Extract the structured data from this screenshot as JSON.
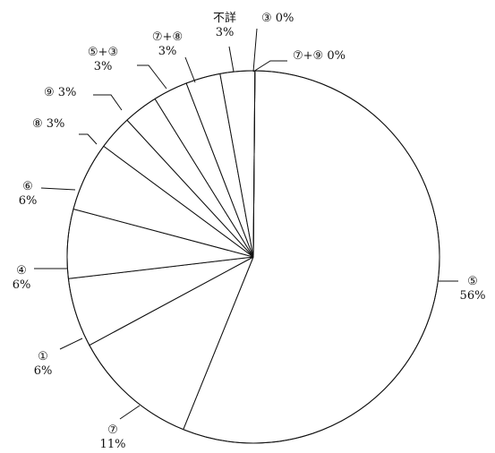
{
  "chart_data": {
    "type": "pie",
    "title": "",
    "slices": [
      {
        "name": "⑤",
        "value": 56,
        "label_lines": [
          "⑤",
          "56%"
        ]
      },
      {
        "name": "⑦",
        "value": 11,
        "label_lines": [
          "⑦",
          "11%"
        ]
      },
      {
        "name": "①",
        "value": 6,
        "label_lines": [
          "①",
          "6%"
        ]
      },
      {
        "name": "④",
        "value": 6,
        "label_lines": [
          "④",
          "6%"
        ]
      },
      {
        "name": "⑥",
        "value": 6,
        "label_lines": [
          "⑥",
          "6%"
        ]
      },
      {
        "name": "⑧",
        "value": 3,
        "label_lines": [
          "⑧ 3%"
        ]
      },
      {
        "name": "⑨",
        "value": 3,
        "label_lines": [
          "⑨ 3%"
        ]
      },
      {
        "name": "⑤+③",
        "value": 3,
        "label_lines": [
          "⑤+③",
          "3%"
        ]
      },
      {
        "name": "⑦+⑧",
        "value": 3,
        "label_lines": [
          "⑦+⑧",
          "3%"
        ]
      },
      {
        "name": "不詳",
        "value": 3,
        "label_lines": [
          "不詳",
          "3%"
        ]
      },
      {
        "name": "③",
        "value": 0,
        "label_lines": [
          "③ 0%"
        ]
      },
      {
        "name": "⑦+⑨",
        "value": 0,
        "label_lines": [
          "⑦+⑨ 0%"
        ]
      }
    ],
    "colors": {
      "fill": "#ffffff",
      "stroke": "#111111"
    }
  }
}
